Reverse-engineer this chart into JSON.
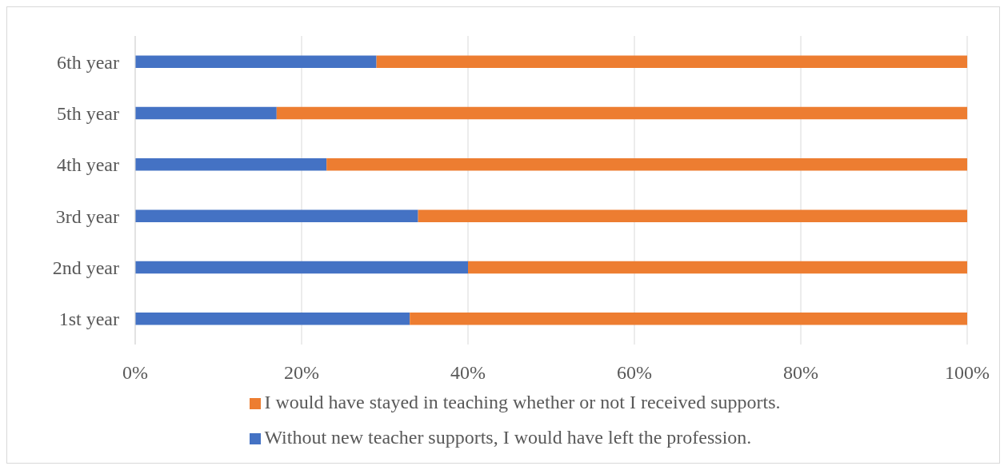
{
  "chart_data": {
    "type": "bar",
    "orientation": "horizontal",
    "stacked": true,
    "categories": [
      "6th year",
      "5th year",
      "4th year",
      "3rd year",
      "2nd year",
      "1st year"
    ],
    "series": [
      {
        "name": "Without new teacher supports, I would have left the profession.",
        "color": "#4472c4",
        "values": [
          29,
          17,
          23,
          34,
          40,
          33
        ]
      },
      {
        "name": "I would have stayed in teaching whether or not I received supports.",
        "color": "#ed7d31",
        "values": [
          71,
          83,
          77,
          66,
          60,
          67
        ]
      }
    ],
    "xlim": [
      0,
      100
    ],
    "xticks": [
      {
        "value": 0,
        "label": "0%"
      },
      {
        "value": 20,
        "label": "20%"
      },
      {
        "value": 40,
        "label": "40%"
      },
      {
        "value": 60,
        "label": "60%"
      },
      {
        "value": 80,
        "label": "80%"
      },
      {
        "value": 100,
        "label": "100%"
      }
    ],
    "grid": "x",
    "legend": "bottom"
  }
}
